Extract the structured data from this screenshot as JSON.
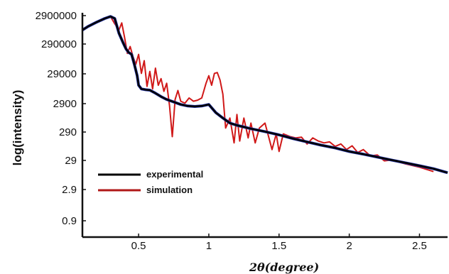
{
  "chart_data": {
    "type": "line",
    "title": "",
    "xlabel": "2θ(degree)",
    "ylabel": "log(intensity)",
    "xlim": [
      0.1,
      2.7
    ],
    "x_ticks": [
      0.5,
      1,
      1.5,
      2,
      2.5
    ],
    "x_tick_labels": [
      "0.5",
      "1",
      "1.5",
      "2",
      "2.5"
    ],
    "y_ticks": [
      "2900000",
      "290000",
      "29000",
      "2900",
      "290",
      "29",
      "2.9",
      "0.9"
    ],
    "y_scale": "log (tick labels as printed)",
    "legend": {
      "placement": "lower-left",
      "entries": [
        "experimental",
        "simulation"
      ]
    },
    "grid": false,
    "series": [
      {
        "name": "experimental",
        "color": "#000000",
        "accent_color": "#1f2fa0",
        "x": [
          0.1,
          0.14,
          0.2,
          0.26,
          0.3,
          0.33,
          0.36,
          0.39,
          0.41,
          0.43,
          0.45,
          0.47,
          0.49,
          0.5,
          0.52,
          0.55,
          0.58,
          0.62,
          0.66,
          0.7,
          0.75,
          0.8,
          0.85,
          0.9,
          0.95,
          1.0,
          1.05,
          1.1,
          1.15,
          1.2,
          1.3,
          1.4,
          1.5,
          1.6,
          1.7,
          1.8,
          1.9,
          2.0,
          2.1,
          2.2,
          2.3,
          2.4,
          2.5,
          2.6,
          2.7
        ],
        "y": [
          900000,
          1200000,
          1700000,
          2300000,
          2700000,
          2300000,
          700000,
          320000,
          200000,
          150000,
          130000,
          60000,
          25000,
          12000,
          9000,
          8500,
          8200,
          6500,
          5000,
          4000,
          3300,
          2700,
          2400,
          2300,
          2400,
          2700,
          1400,
          900,
          600,
          500,
          380,
          300,
          230,
          170,
          130,
          100,
          80,
          60,
          48,
          38,
          30,
          24,
          19,
          15,
          11
        ]
      },
      {
        "name": "simulation",
        "color": "#d01818",
        "x": [
          0.26,
          0.3,
          0.33,
          0.36,
          0.38,
          0.4,
          0.42,
          0.44,
          0.46,
          0.48,
          0.5,
          0.52,
          0.54,
          0.56,
          0.58,
          0.6,
          0.62,
          0.64,
          0.66,
          0.68,
          0.7,
          0.72,
          0.74,
          0.76,
          0.78,
          0.8,
          0.83,
          0.86,
          0.89,
          0.92,
          0.95,
          0.98,
          1.0,
          1.02,
          1.04,
          1.06,
          1.08,
          1.1,
          1.12,
          1.15,
          1.18,
          1.2,
          1.22,
          1.25,
          1.28,
          1.3,
          1.33,
          1.36,
          1.4,
          1.45,
          1.48,
          1.5,
          1.53,
          1.58,
          1.62,
          1.66,
          1.7,
          1.74,
          1.78,
          1.82,
          1.86,
          1.9,
          1.94,
          1.98,
          2.02,
          2.06,
          2.1,
          2.15,
          2.2,
          2.25,
          2.3,
          2.4,
          2.5,
          2.6
        ],
        "y": [
          2300000,
          2700000,
          1500000,
          900000,
          1600000,
          500000,
          140000,
          240000,
          110000,
          60000,
          130000,
          30000,
          80000,
          11000,
          35000,
          9000,
          45000,
          12000,
          20000,
          7500,
          14000,
          2500,
          200,
          4000,
          8000,
          3500,
          3000,
          4500,
          3500,
          3800,
          4500,
          14000,
          25000,
          12000,
          30000,
          32000,
          18000,
          6000,
          400,
          900,
          120,
          1200,
          140,
          900,
          180,
          600,
          120,
          400,
          600,
          70,
          250,
          60,
          250,
          200,
          180,
          190,
          110,
          180,
          140,
          120,
          130,
          90,
          110,
          70,
          95,
          55,
          70,
          42,
          45,
          28,
          30,
          22,
          17,
          12
        ]
      }
    ]
  }
}
